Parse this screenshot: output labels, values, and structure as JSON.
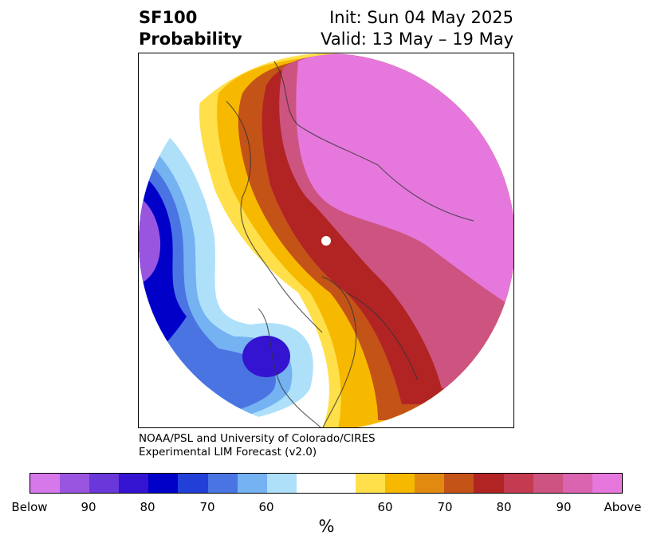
{
  "header": {
    "title_line1": "SF100",
    "title_line2": "Probability",
    "init_text": "Init: Sun 04 May 2025",
    "valid_text": "Valid: 13 May – 19 May"
  },
  "credit": {
    "line1": "NOAA/PSL and University of Colorado/CIRES",
    "line2": "Experimental LIM Forecast (v2.0)"
  },
  "colorbar": {
    "colors": [
      "#d678ea",
      "#9a55e0",
      "#6a38d8",
      "#3414d0",
      "#0000c8",
      "#2240d8",
      "#4a74e2",
      "#74b2f2",
      "#aee0fa",
      "#ffffff",
      "#ffe04a",
      "#f7b800",
      "#e28a10",
      "#c45318",
      "#b22424",
      "#c43a50",
      "#cd5480",
      "#db64b0",
      "#e678dd"
    ],
    "tick_labels": [
      "Below",
      "90",
      "80",
      "70",
      "60",
      "60",
      "70",
      "80",
      "90",
      "Above"
    ],
    "unit": "%"
  }
}
